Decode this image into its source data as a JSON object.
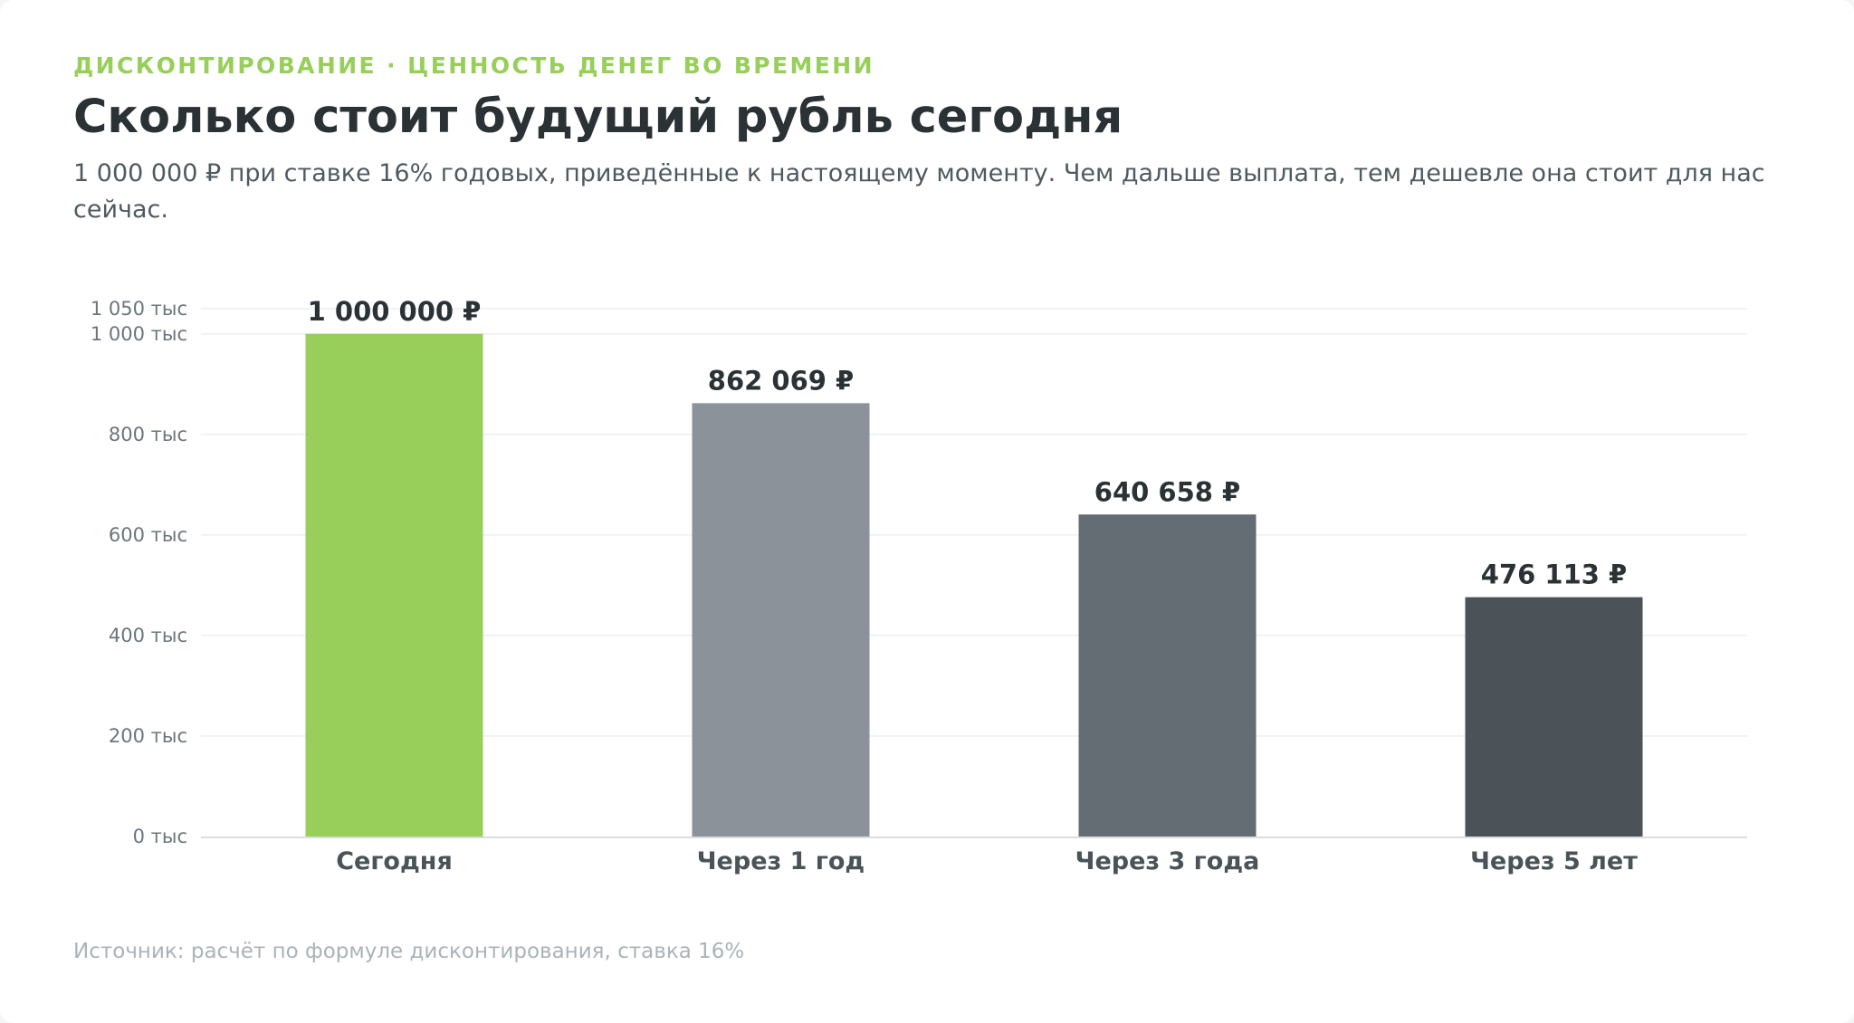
{
  "header": {
    "eyebrow": "ДИСКОНТИРОВАНИЕ · ЦЕННОСТЬ ДЕНЕГ ВО ВРЕМЕНИ",
    "title": "Сколько стоит будущий рубль сегодня",
    "subtitle": "1 000 000 ₽ при ставке 16% годовых, приведённые к настоящему моменту. Чем дальше выплата, тем дешевле она стоит для нас сейчас."
  },
  "footer": {
    "source": "Источник: расчёт по формуле дисконтирования, ставка 16%"
  },
  "colors": {
    "accent": "#97cf5a",
    "grid": "#eceff1",
    "axis": "#d9dde0"
  },
  "chart_data": {
    "type": "bar",
    "categories": [
      "Сегодня",
      "Через 1 год",
      "Через 3 года",
      "Через 5 лет"
    ],
    "values": [
      1000000,
      862069,
      640658,
      476113
    ],
    "value_labels": [
      "1 000 000 ₽",
      "862 069 ₽",
      "640 658 ₽",
      "476 113 ₽"
    ],
    "bar_colors": [
      "#97cf5a",
      "#8b9299",
      "#636d73",
      "#4b5358"
    ],
    "ylim": [
      0,
      1050000
    ],
    "yticks": [
      0,
      200000,
      400000,
      600000,
      800000,
      1000000,
      1050000
    ],
    "ytick_labels": [
      "0 тыс",
      "200 тыс",
      "400 тыс",
      "600 тыс",
      "800 тыс",
      "1 000 тыс",
      "1 050 тыс"
    ],
    "grid": true,
    "xlabel": "",
    "ylabel": ""
  }
}
